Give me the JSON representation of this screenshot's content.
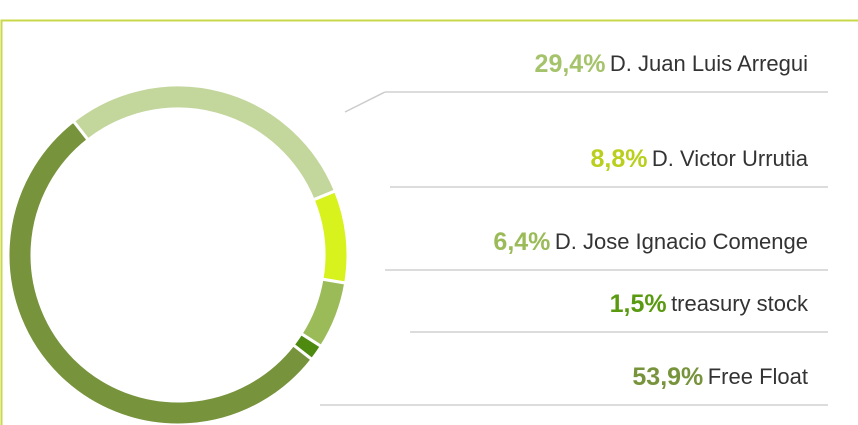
{
  "chart_data": {
    "type": "donut",
    "categories": [
      "D. Juan Luis Arregui",
      "D. Victor Urrutia",
      "D. Jose Ignacio Comenge",
      "treasury stock",
      "Free Float"
    ],
    "values": [
      29.4,
      8.8,
      6.4,
      1.5,
      53.9
    ],
    "value_labels": [
      "29,4%",
      "8,8%",
      "6,4%",
      "1,5%",
      "53,9%"
    ],
    "colors": [
      "#c3d69b",
      "#d7f21c",
      "#9bbb59",
      "#4f8a10",
      "#77933c"
    ],
    "label_colors": [
      "#a5c36a",
      "#b9cf1c",
      "#9bbb59",
      "#5a9a10",
      "#77933c"
    ]
  }
}
